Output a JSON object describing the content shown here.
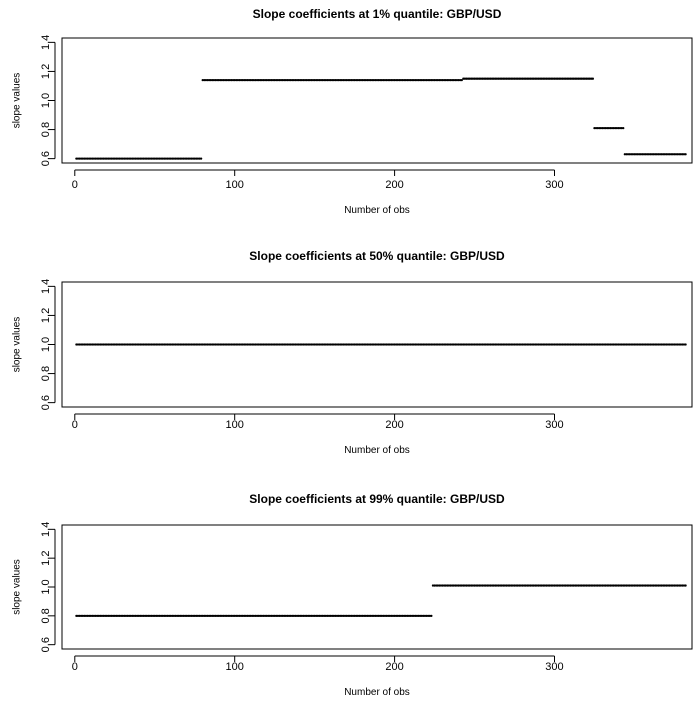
{
  "chart_data": [
    {
      "type": "scatter",
      "title": "Slope coefficients at 1% quantile: GBP/USD",
      "xlabel": "Number of obs",
      "ylabel": "slope values",
      "xlim": [
        -8,
        386
      ],
      "ylim": [
        0.57,
        1.43
      ],
      "xticks": [
        0,
        100,
        200,
        300
      ],
      "yticks": [
        0.6,
        0.8,
        1.0,
        1.2,
        1.4
      ],
      "xtick_labels": [
        "0",
        "100",
        "200",
        "300"
      ],
      "ytick_labels": [
        "0.6",
        "0.8",
        "1.0",
        "1.2",
        "1.4"
      ],
      "grid": false,
      "segments": [
        {
          "x_start": 1,
          "x_end": 79,
          "y": 0.6
        },
        {
          "x_start": 80,
          "x_end": 242,
          "y": 1.14
        },
        {
          "x_start": 243,
          "x_end": 324,
          "y": 1.15
        },
        {
          "x_start": 325,
          "x_end": 343,
          "y": 0.81
        },
        {
          "x_start": 344,
          "x_end": 382,
          "y": 0.63
        }
      ]
    },
    {
      "type": "scatter",
      "title": "Slope coefficients at 50% quantile: GBP/USD",
      "xlabel": "Number of obs",
      "ylabel": "slope values",
      "xlim": [
        -8,
        386
      ],
      "ylim": [
        0.57,
        1.43
      ],
      "xticks": [
        0,
        100,
        200,
        300
      ],
      "yticks": [
        0.6,
        0.8,
        1.0,
        1.2,
        1.4
      ],
      "xtick_labels": [
        "0",
        "100",
        "200",
        "300"
      ],
      "ytick_labels": [
        "0.6",
        "0.8",
        "1.0",
        "1.2",
        "1.4"
      ],
      "grid": false,
      "segments": [
        {
          "x_start": 1,
          "x_end": 382,
          "y": 1.0
        }
      ]
    },
    {
      "type": "scatter",
      "title": "Slope coefficients at 99% quantile: GBP/USD",
      "xlabel": "Number of obs",
      "ylabel": "slope values",
      "xlim": [
        -8,
        386
      ],
      "ylim": [
        0.57,
        1.43
      ],
      "xticks": [
        0,
        100,
        200,
        300
      ],
      "yticks": [
        0.6,
        0.8,
        1.0,
        1.2,
        1.4
      ],
      "xtick_labels": [
        "0",
        "100",
        "200",
        "300"
      ],
      "ytick_labels": [
        "0.6",
        "0.8",
        "1.0",
        "1.2",
        "1.4"
      ],
      "grid": false,
      "segments": [
        {
          "x_start": 1,
          "x_end": 223,
          "y": 0.8
        },
        {
          "x_start": 224,
          "x_end": 382,
          "y": 1.01
        }
      ]
    }
  ]
}
